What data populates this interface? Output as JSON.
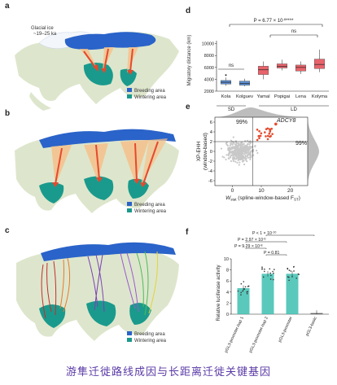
{
  "caption": "游隼迁徙路线成因与长距离迁徙关键基因",
  "colors": {
    "breeding": "#2a63c9",
    "wintering": "#1a9a8c",
    "land": "#dde6cc",
    "arrow": "#e5492d",
    "boxplot": "#e8636b",
    "blue_box": "#5d8fd0",
    "teal_bar": "#3dbfb0"
  },
  "panels": {
    "a": {
      "letter": "a",
      "glacial_label_line1": "Glacial ice",
      "glacial_label_line2": "~19–25 ka",
      "legend": [
        "Breeding area",
        "Wintering area"
      ]
    },
    "b": {
      "letter": "b",
      "legend": [
        "Breeding area",
        "Wintering area"
      ]
    },
    "c": {
      "letter": "c",
      "legend": [
        "Breeding area",
        "Wintering area"
      ]
    },
    "d": {
      "letter": "d",
      "p_overall": "P = 6.77 × 10",
      "p_overall_exp": "-8",
      "p_overall_stars": "****",
      "ns_left": "ns",
      "ns_right": "ns",
      "ylabel": "Migratory distance (km)",
      "group_sd": "SD",
      "group_ld": "LD"
    },
    "e": {
      "letter": "e",
      "pct_top_left": "99%",
      "pct_right": "99%",
      "gene": "ADCY8",
      "ylabel_line1": "XP-EHH",
      "ylabel_line2": "(window-based)",
      "xlabel_main": "W",
      "xlabel_sub": "stat",
      "xlabel_rest": " (spline-window-based F",
      "xlabel_sub2": "ST",
      "xlabel_end": ")"
    },
    "f": {
      "letter": "f",
      "p1": "P < 1 × 10",
      "p1_exp": "-10",
      "p2": "P = 2.97 × 10",
      "p2_exp": "-6",
      "p3": "P = 9.29 × 10",
      "p3_exp": "-8",
      "p4": "P = 0.81",
      "ylabel": "Relative luciferase activity"
    }
  },
  "chart_data": [
    {
      "type": "box",
      "panel": "d",
      "categories": [
        "Kola",
        "Kolguev",
        "Yamal",
        "Popigai",
        "Lena",
        "Kolyma"
      ],
      "groups": [
        {
          "name": "SD",
          "categories": [
            "Kola",
            "Kolguev"
          ]
        },
        {
          "name": "LD",
          "categories": [
            "Yamal",
            "Popigai",
            "Lena",
            "Kolyma"
          ]
        }
      ],
      "ylabel": "Migratory distance (km)",
      "yticks": [
        2000,
        4000,
        6000,
        8000,
        10000
      ],
      "ylim": [
        2000,
        10500
      ],
      "boxes": [
        {
          "category": "Kola",
          "min": 2900,
          "q1": 3200,
          "median": 3500,
          "q3": 3800,
          "max": 4300,
          "outliers": [
            4700
          ],
          "color": "#5d8fd0"
        },
        {
          "category": "Kolguev",
          "min": 2800,
          "q1": 3000,
          "median": 3300,
          "q3": 3700,
          "max": 4100,
          "outliers": [],
          "color": "#5d8fd0"
        },
        {
          "category": "Yamal",
          "min": 4000,
          "q1": 4800,
          "median": 5600,
          "q3": 6200,
          "max": 7000,
          "outliers": [],
          "color": "#e8636b"
        },
        {
          "category": "Popigai",
          "min": 5500,
          "q1": 5900,
          "median": 6200,
          "q3": 6600,
          "max": 7300,
          "outliers": [],
          "color": "#e8636b"
        },
        {
          "category": "Lena",
          "min": 4900,
          "q1": 5400,
          "median": 6000,
          "q3": 6400,
          "max": 7000,
          "outliers": [],
          "color": "#e8636b"
        },
        {
          "category": "Kolyma",
          "min": 5200,
          "q1": 5800,
          "median": 6500,
          "q3": 7400,
          "max": 9000,
          "outliers": [],
          "color": "#e8636b"
        }
      ]
    },
    {
      "type": "scatter",
      "panel": "e",
      "xticks": [
        0,
        10,
        20
      ],
      "yticks": [
        -6,
        -4,
        -2,
        0,
        2,
        4,
        6
      ],
      "xlim": [
        -6,
        26
      ],
      "ylim": [
        -7,
        7
      ],
      "threshold_x": 7,
      "threshold_y": 2,
      "highlight": "ADCY8",
      "highlight_color": "#e5492d"
    },
    {
      "type": "bar",
      "panel": "f",
      "categories": [
        "pGL3-promoter-hap 1",
        "pGL3-promoter-hap 2",
        "pGL3-promoter",
        "pGL3-basic"
      ],
      "values": [
        4.7,
        7.3,
        7.3,
        0.2
      ],
      "yticks": [
        0,
        2,
        4,
        6,
        8,
        10
      ],
      "ylim": [
        0,
        10
      ],
      "ylabel": "Relative luciferase activity"
    }
  ]
}
